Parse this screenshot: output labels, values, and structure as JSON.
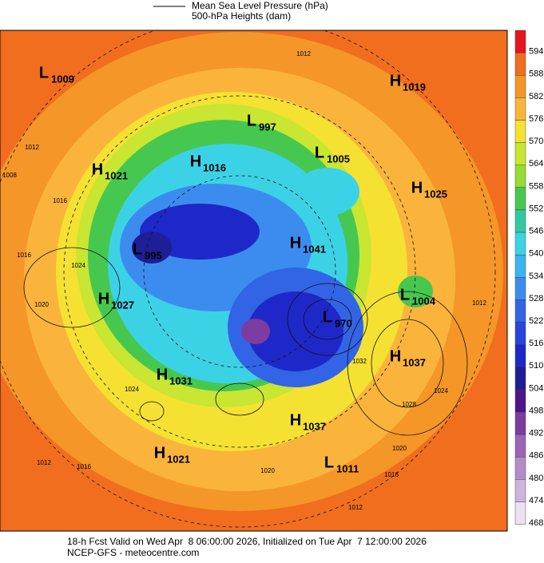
{
  "legend": {
    "mslp": "Mean Sea Level Pressure (hPa)",
    "heights": "500-hPa Heights (dam)"
  },
  "colorbar": {
    "ticks": [
      594,
      588,
      582,
      576,
      570,
      564,
      558,
      552,
      546,
      540,
      534,
      528,
      522,
      516,
      510,
      504,
      498,
      492,
      486,
      480,
      474,
      468
    ],
    "colors": [
      "#e8141e",
      "#f06e1e",
      "#f59628",
      "#fab43c",
      "#f5e132",
      "#c8e632",
      "#96dc32",
      "#46c850",
      "#32c8a0",
      "#3cd2e6",
      "#3cb4f0",
      "#3c8cf0",
      "#3264e6",
      "#2846dc",
      "#1e28c8",
      "#1e1e96",
      "#50148c",
      "#7d3ca0",
      "#9b64b4",
      "#b48cc8",
      "#cdb4dc",
      "#ebe1f0"
    ]
  },
  "centers": [
    {
      "kind": "L",
      "value": "1009"
    },
    {
      "kind": "H",
      "value": "1019"
    },
    {
      "kind": "L",
      "value": "997"
    },
    {
      "kind": "H",
      "value": "1021"
    },
    {
      "kind": "H",
      "value": "1016"
    },
    {
      "kind": "L",
      "value": "1005"
    },
    {
      "kind": "H",
      "value": "1025"
    },
    {
      "kind": "H",
      "value": "1041"
    },
    {
      "kind": "L",
      "value": "995"
    },
    {
      "kind": "H",
      "value": "1027"
    },
    {
      "kind": "L",
      "value": "1004"
    },
    {
      "kind": "L",
      "value": "970"
    },
    {
      "kind": "H",
      "value": "1037"
    },
    {
      "kind": "H",
      "value": "1031"
    },
    {
      "kind": "H",
      "value": "1037"
    },
    {
      "kind": "H",
      "value": "1021"
    },
    {
      "kind": "L",
      "value": "1011"
    }
  ],
  "contour_labels": [
    "1012",
    "1008",
    "1012",
    "1016",
    "1024",
    "1020",
    "1016",
    "1012",
    "1024",
    "1028",
    "1020",
    "1016",
    "1012",
    "1032",
    "1024",
    "1020",
    "1016",
    "1012"
  ],
  "footer": {
    "line1": "18-h Fcst Valid on Wed Apr  8 06:00:00 2026, Initialized on Tue Apr  7 12:00:00 2026",
    "line2": "NCEP-GFS - meteocentre.com"
  }
}
